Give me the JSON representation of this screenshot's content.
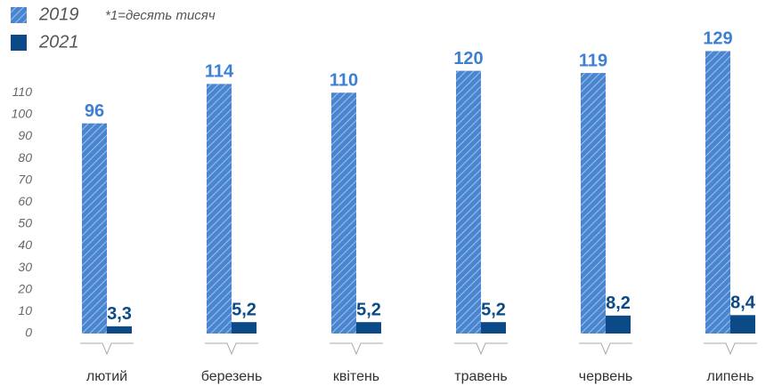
{
  "chart_data": {
    "type": "bar",
    "note": "*1=десять тисяч",
    "categories": [
      "лютий",
      "березень",
      "квітень",
      "травень",
      "червень",
      "липень"
    ],
    "series": [
      {
        "name": "2019",
        "color": "#4a86d0",
        "hatch": true,
        "values": [
          96,
          114,
          110,
          120,
          119,
          129
        ]
      },
      {
        "name": "2021",
        "color": "#0b4a86",
        "hatch": false,
        "values": [
          3.3,
          5.2,
          5.2,
          5.2,
          8.2,
          8.4
        ],
        "value_labels": [
          "3,3",
          "5,2",
          "5,2",
          "5,2",
          "8,2",
          "8,4"
        ]
      }
    ],
    "ylim": [
      0,
      130
    ],
    "yticks": [
      0,
      10,
      20,
      30,
      40,
      50,
      60,
      70,
      80,
      90,
      100,
      110
    ],
    "grid": false
  }
}
